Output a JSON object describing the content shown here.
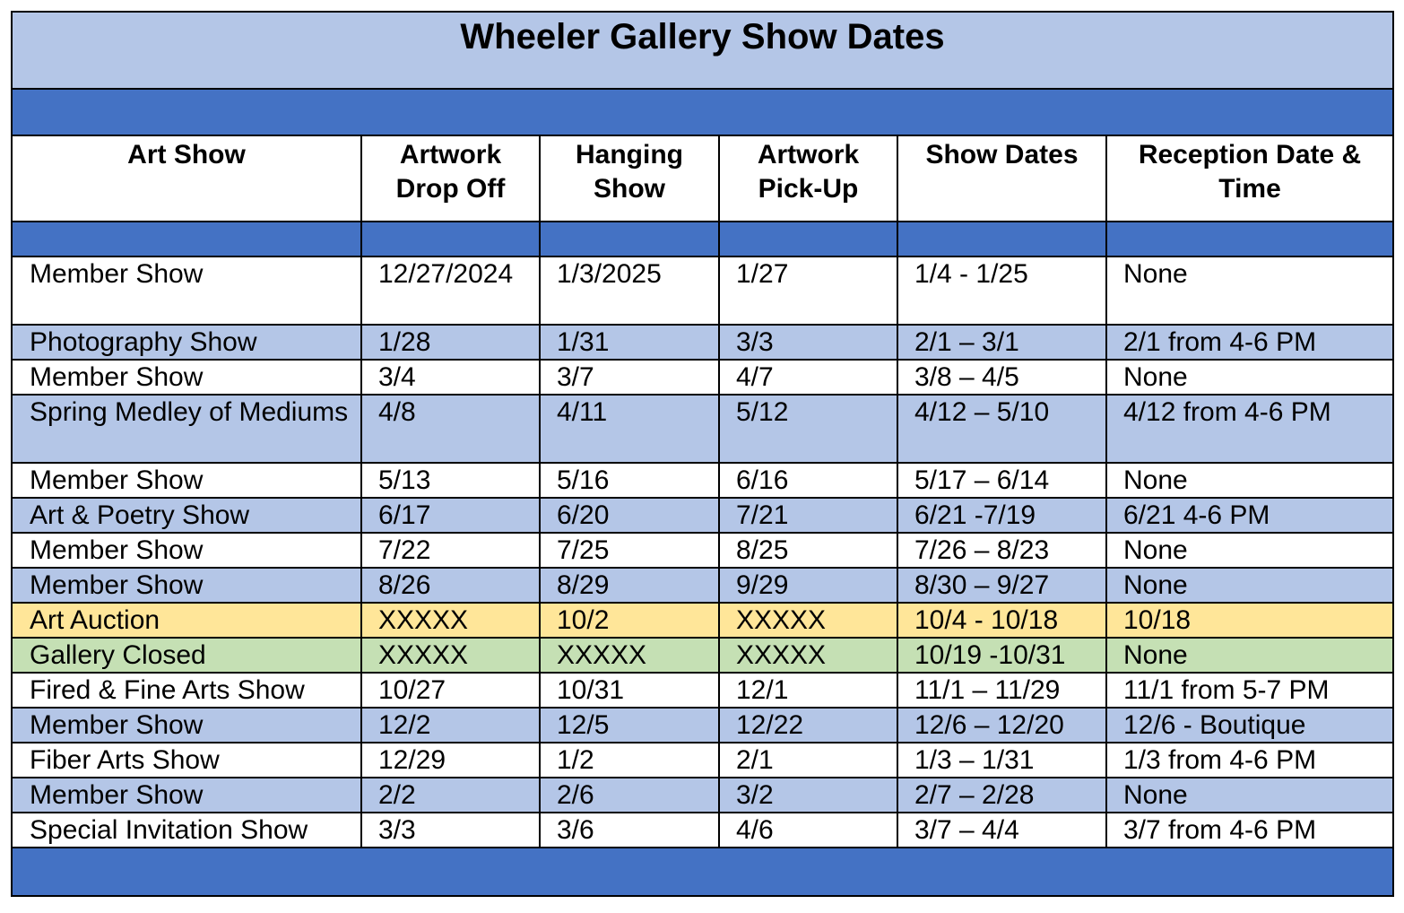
{
  "title": "Wheeler Gallery Show Dates",
  "colors": {
    "title_bg": "#b4c6e7",
    "band": "#4472c4",
    "row_blue": "#b4c6e7",
    "row_yellow": "#ffe699",
    "row_green": "#c5e0b4",
    "row_white": "#ffffff"
  },
  "columns": [
    [
      "Art Show"
    ],
    [
      "Artwork",
      "Drop Off"
    ],
    [
      "Hanging",
      "Show"
    ],
    [
      "Artwork",
      "Pick-Up"
    ],
    [
      "Show Dates"
    ],
    [
      "Reception Date &",
      "Time"
    ]
  ],
  "rows": [
    {
      "style": "white",
      "cells": [
        "Member Show",
        "12/27/2024",
        "1/3/2025",
        "1/27",
        "1/4 - 1/25",
        "None"
      ]
    },
    {
      "style": "blue",
      "cells": [
        "Photography Show",
        "1/28",
        "1/31",
        "3/3",
        "2/1 – 3/1",
        "2/1 from 4-6 PM"
      ]
    },
    {
      "style": "white",
      "cells": [
        "Member Show",
        "3/4",
        "3/7",
        "4/7",
        "3/8 – 4/5",
        "None"
      ]
    },
    {
      "style": "blue",
      "cells": [
        "Spring Medley of Mediums",
        "4/8",
        "4/11",
        "5/12",
        "4/12 – 5/10",
        "4/12 from 4-6 PM"
      ]
    },
    {
      "style": "white",
      "cells": [
        "Member Show",
        "5/13",
        "5/16",
        "6/16",
        "5/17 – 6/14",
        "None"
      ]
    },
    {
      "style": "blue",
      "cells": [
        "Art & Poetry Show",
        "6/17",
        "6/20",
        "7/21",
        "6/21 -7/19",
        "6/21 4-6 PM"
      ]
    },
    {
      "style": "white",
      "cells": [
        "Member Show",
        "7/22",
        "7/25",
        "8/25",
        "7/26 – 8/23",
        "None"
      ]
    },
    {
      "style": "blue",
      "cells": [
        "Member Show",
        "8/26",
        "8/29",
        "9/29",
        "8/30 – 9/27",
        "None"
      ]
    },
    {
      "style": "yellow",
      "cells": [
        "Art Auction",
        "XXXXX",
        "10/2",
        " XXXXX",
        " 10/4 - 10/18",
        "10/18"
      ]
    },
    {
      "style": "green",
      "cells": [
        "Gallery Closed",
        "XXXXX",
        "XXXXX",
        "XXXXX",
        "10/19 -10/31",
        "None"
      ]
    },
    {
      "style": "white",
      "cells": [
        "Fired & Fine Arts Show",
        "10/27",
        "10/31",
        "12/1",
        " 11/1 – 11/29",
        "11/1 from 5-7 PM"
      ]
    },
    {
      "style": "blue",
      "cells": [
        "Member Show",
        "12/2",
        "12/5",
        " 12/22",
        " 12/6 – 12/20",
        "12/6 - Boutique"
      ]
    },
    {
      "style": "white",
      "cells": [
        "Fiber Arts Show",
        "12/29",
        "1/2",
        "2/1",
        "1/3 – 1/31",
        "1/3 from 4-6 PM"
      ]
    },
    {
      "style": "blue",
      "cells": [
        "Member Show",
        "2/2",
        "2/6",
        "3/2",
        " 2/7 – 2/28",
        "None"
      ]
    },
    {
      "style": "white",
      "cells": [
        "Special Invitation Show",
        "3/3",
        "3/6",
        "4/6",
        "3/7 – 4/4",
        "3/7 from 4-6 PM"
      ]
    }
  ]
}
